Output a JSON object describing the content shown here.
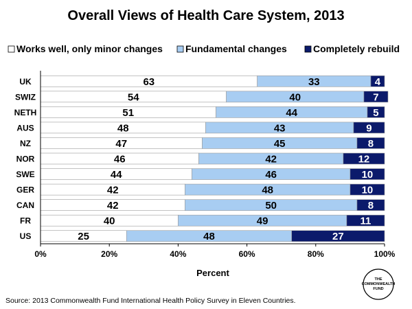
{
  "chart_data": {
    "type": "bar",
    "orientation": "horizontal",
    "stacked": true,
    "title": "Overall Views of Health Care System, 2013",
    "xlabel": "Percent",
    "ylabel": "",
    "xlim": [
      0,
      100
    ],
    "x_ticks": [
      "0%",
      "20%",
      "40%",
      "60%",
      "80%",
      "100%"
    ],
    "x_tick_values": [
      0,
      20,
      40,
      60,
      80,
      100
    ],
    "grid": false,
    "legend_position": "top",
    "categories": [
      "UK",
      "SWIZ",
      "NETH",
      "AUS",
      "NZ",
      "NOR",
      "SWE",
      "GER",
      "CAN",
      "FR",
      "US"
    ],
    "series": [
      {
        "name": "Works well, only minor changes",
        "color": "#ffffff",
        "label_color": "#000000",
        "values": [
          63,
          54,
          51,
          48,
          47,
          46,
          44,
          42,
          42,
          40,
          25
        ]
      },
      {
        "name": "Fundamental changes",
        "color": "#a8cdf2",
        "label_color": "#000000",
        "values": [
          33,
          40,
          44,
          43,
          45,
          42,
          46,
          48,
          50,
          49,
          48
        ]
      },
      {
        "name": "Completely rebuild",
        "color": "#0b1a6b",
        "label_color": "#ffffff",
        "values": [
          4,
          7,
          5,
          9,
          8,
          12,
          10,
          10,
          8,
          11,
          27
        ]
      }
    ]
  },
  "source": "Source: 2013 Commonwealth Fund International Health Policy Survey in Eleven Countries.",
  "logo": {
    "lines": [
      "THE",
      "COMMONWEALTH",
      "FUND"
    ]
  }
}
